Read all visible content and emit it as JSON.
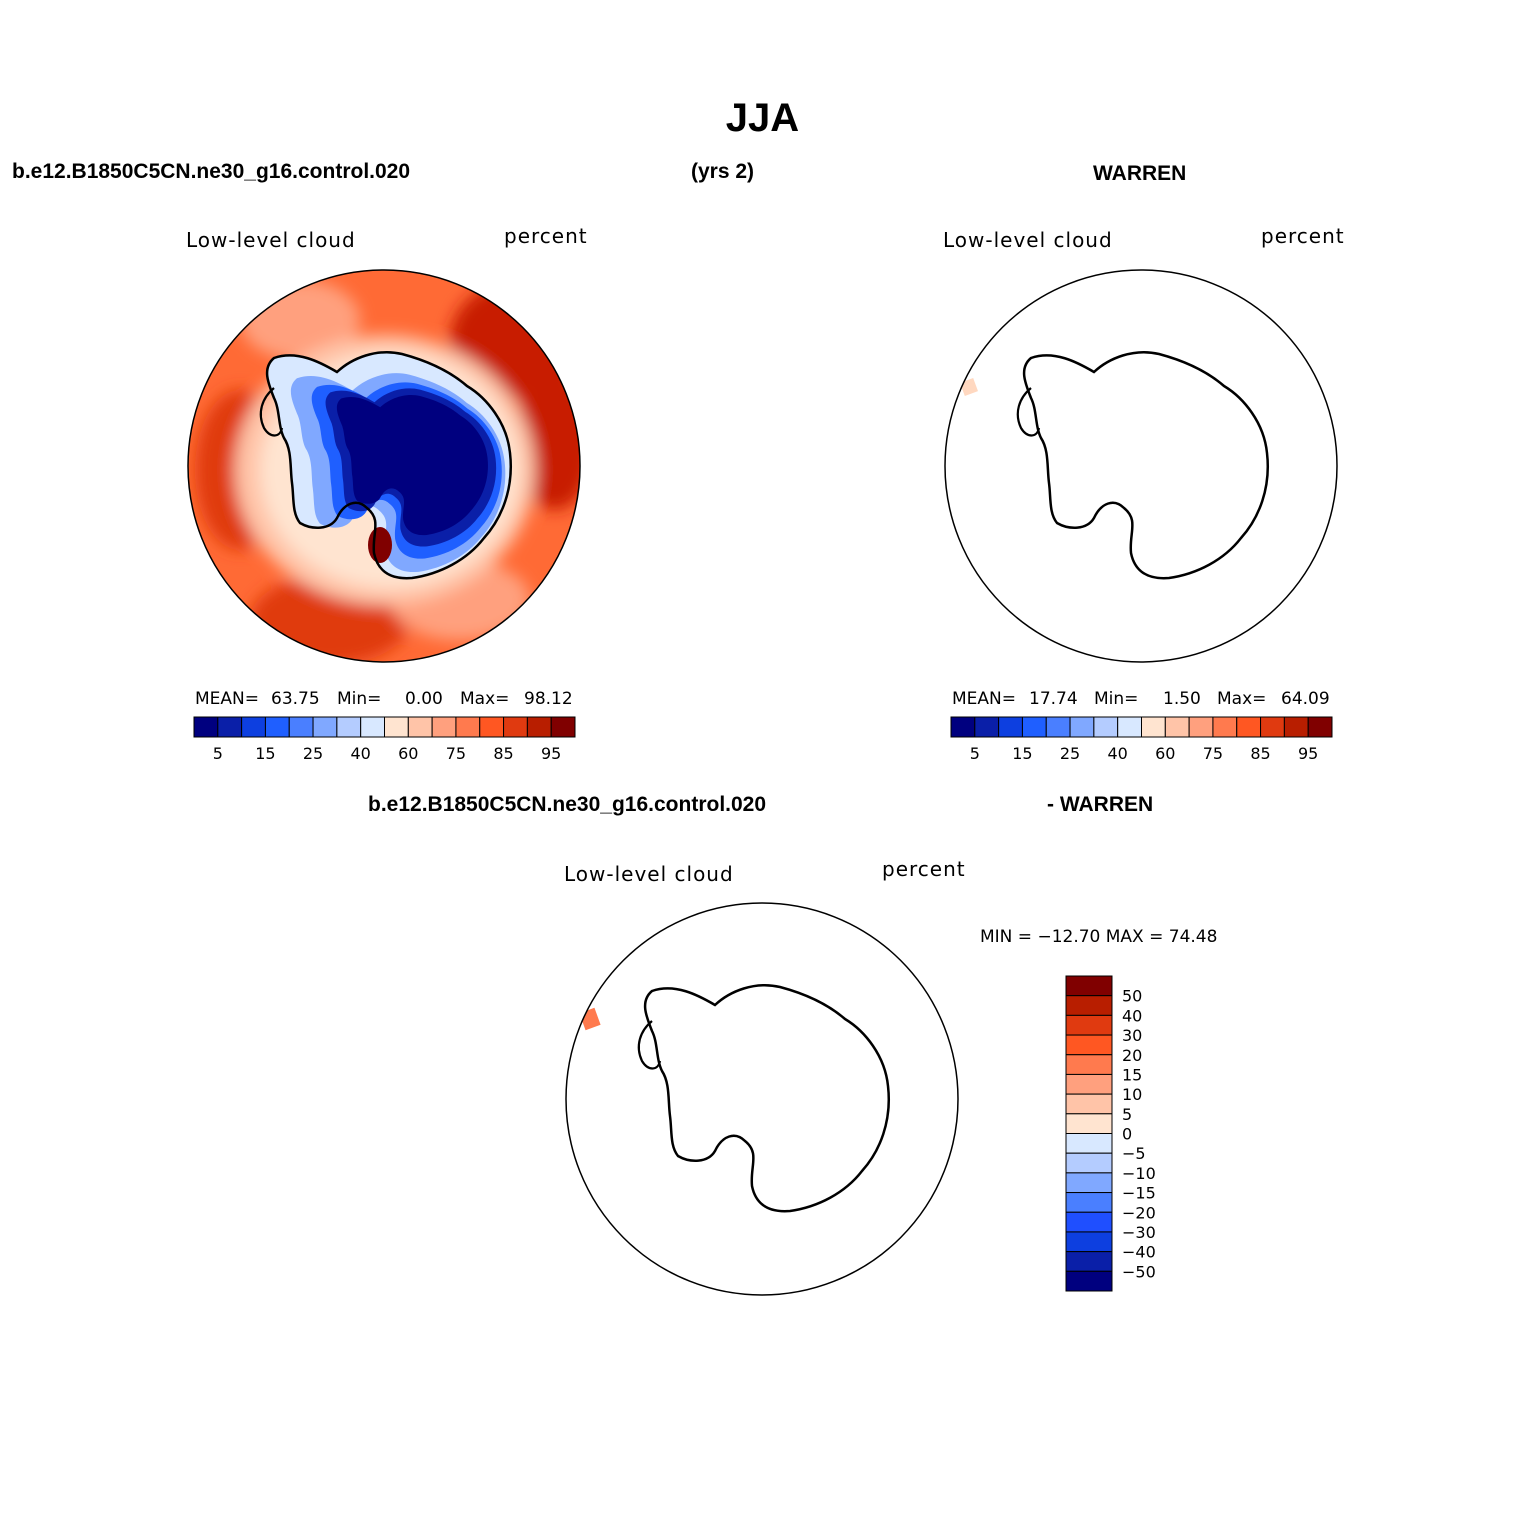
{
  "page": {
    "title": "JJA",
    "header_left": "b.e12.B1850C5CN.ne30_g16.control.020",
    "header_center": "(yrs 2)",
    "header_right": "WARREN",
    "diff_header_left": "b.e12.B1850C5CN.ne30_g16.control.020",
    "diff_header_right": "- WARREN"
  },
  "colors": {
    "abs_palette": [
      "#00007f",
      "#0a1fa8",
      "#0d3fe0",
      "#1f5fff",
      "#4a7fff",
      "#80a8ff",
      "#b4ccff",
      "#d8e8ff",
      "#ffe4d0",
      "#ffc4a8",
      "#ffa07e",
      "#ff7a4e",
      "#ff5722",
      "#e03a10",
      "#b81e00",
      "#800000"
    ],
    "diff_palette": [
      "#00007f",
      "#0a1fa8",
      "#0d3fe0",
      "#1f4fff",
      "#4a7fff",
      "#80a8ff",
      "#b4ccff",
      "#d8e8ff",
      "#ffe4d0",
      "#ffc4a8",
      "#ffa07e",
      "#ff7a4e",
      "#ff5722",
      "#e03a10",
      "#b81e00",
      "#800000"
    ]
  },
  "chart_data": [
    {
      "type": "heatmap",
      "projection": "south polar stereographic",
      "title": "Low-level cloud",
      "units": "percent",
      "stats": {
        "mean_label": "MEAN=",
        "mean": "63.75",
        "min_label": "Min=",
        "min": "0.00",
        "max_label": "Max=",
        "max": "98.12"
      },
      "colorbar_ticks": [
        "5",
        "15",
        "25",
        "40",
        "60",
        "75",
        "85",
        "95"
      ],
      "field_summary": "high low cloud (70-95%) over Southern Ocean, low (0-25%) over East Antarctic plateau"
    },
    {
      "type": "heatmap",
      "projection": "south polar stereographic",
      "title": "Low-level cloud",
      "units": "percent",
      "stats": {
        "mean_label": "MEAN=",
        "mean": "17.74",
        "min_label": "Min=",
        "min": "1.50",
        "max_label": "Max=",
        "max": "64.09"
      },
      "colorbar_ticks": [
        "5",
        "15",
        "25",
        "40",
        "60",
        "75",
        "85",
        "95"
      ],
      "field_summary": "mostly missing; single small patch near Antarctic Peninsula"
    },
    {
      "type": "heatmap",
      "projection": "south polar stereographic",
      "title": "Low-level cloud",
      "units": "percent",
      "stats": {
        "text": "MIN = −12.70 MAX =   74.48"
      },
      "colorbar_ticks": [
        "50",
        "40",
        "30",
        "20",
        "15",
        "10",
        "5",
        "0",
        "−5",
        "−10",
        "−15",
        "−20",
        "−30",
        "−40",
        "−50"
      ],
      "field_summary": "difference field; small positive patch near Antarctic Peninsula"
    }
  ]
}
